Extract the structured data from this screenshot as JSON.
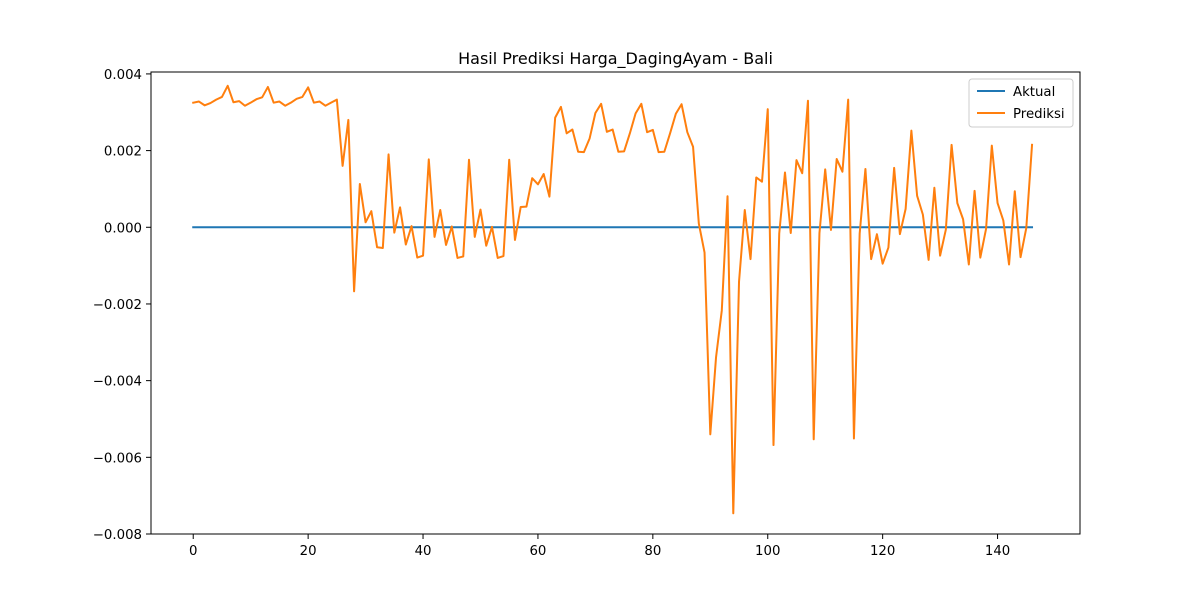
{
  "chart_data": {
    "type": "line",
    "title": "Hasil Prediksi Harga_DagingAyam - Bali",
    "xlabel": "",
    "ylabel": "",
    "xlim": [
      -7.35,
      154.35
    ],
    "ylim": [
      -0.008,
      0.00405
    ],
    "xticks": [
      0,
      20,
      40,
      60,
      80,
      100,
      120,
      140
    ],
    "xtick_labels": [
      "0",
      "20",
      "40",
      "60",
      "80",
      "100",
      "120",
      "140"
    ],
    "yticks": [
      -0.008,
      -0.006,
      -0.004,
      -0.002,
      0.0,
      0.002,
      0.004
    ],
    "ytick_labels": [
      "−0.008",
      "−0.006",
      "−0.004",
      "−0.002",
      "0.000",
      "0.002",
      "0.004"
    ],
    "legend_position": "upper right",
    "grid": false,
    "x": [
      0,
      1,
      2,
      3,
      4,
      5,
      6,
      7,
      8,
      9,
      10,
      11,
      12,
      13,
      14,
      15,
      16,
      17,
      18,
      19,
      20,
      21,
      22,
      23,
      24,
      25,
      26,
      27,
      28,
      29,
      30,
      31,
      32,
      33,
      34,
      35,
      36,
      37,
      38,
      39,
      40,
      41,
      42,
      43,
      44,
      45,
      46,
      47,
      48,
      49,
      50,
      51,
      52,
      53,
      54,
      55,
      56,
      57,
      58,
      59,
      60,
      61,
      62,
      63,
      64,
      65,
      66,
      67,
      68,
      69,
      70,
      71,
      72,
      73,
      74,
      75,
      76,
      77,
      78,
      79,
      80,
      81,
      82,
      83,
      84,
      85,
      86,
      87,
      88,
      89,
      90,
      91,
      92,
      93,
      94,
      95,
      96,
      97,
      98,
      99,
      100,
      101,
      102,
      103,
      104,
      105,
      106,
      107,
      108,
      109,
      110,
      111,
      112,
      113,
      114,
      115,
      116,
      117,
      118,
      119,
      120,
      121,
      122,
      123,
      124,
      125,
      126,
      127,
      128,
      129,
      130,
      131,
      132,
      133,
      134,
      135,
      136,
      137,
      138,
      139,
      140,
      141,
      142,
      143,
      144,
      145,
      146
    ],
    "series": [
      {
        "name": "Aktual",
        "color": "#1f77b4",
        "values": [
          0,
          0,
          0,
          0,
          0,
          0,
          0,
          0,
          0,
          0,
          0,
          0,
          0,
          0,
          0,
          0,
          0,
          0,
          0,
          0,
          0,
          0,
          0,
          0,
          0,
          0,
          0,
          0,
          0,
          0,
          0,
          0,
          0,
          0,
          0,
          0,
          0,
          0,
          0,
          0,
          0,
          0,
          0,
          0,
          0,
          0,
          0,
          0,
          0,
          0,
          0,
          0,
          0,
          0,
          0,
          0,
          0,
          0,
          0,
          0,
          0,
          0,
          0,
          0,
          0,
          0,
          0,
          0,
          0,
          0,
          0,
          0,
          0,
          0,
          0,
          0,
          0,
          0,
          0,
          0,
          0,
          0,
          0,
          0,
          0,
          0,
          0,
          0,
          0,
          0,
          0,
          0,
          0,
          0,
          0,
          0,
          0,
          0,
          0,
          0,
          0,
          0,
          0,
          0,
          0,
          0,
          0,
          0,
          0,
          0,
          0,
          0,
          0,
          0,
          0,
          0,
          0,
          0,
          0,
          0,
          0,
          0,
          0,
          0,
          0,
          0,
          0,
          0,
          0,
          0,
          0,
          0,
          0,
          0,
          0,
          0,
          0,
          0,
          0,
          0,
          0,
          0,
          0,
          0,
          0,
          0,
          0
        ]
      },
      {
        "name": "Prediksi",
        "color": "#ff7f0e",
        "values": [
          0.00325,
          0.00328,
          0.00318,
          0.00324,
          0.00333,
          0.0034,
          0.00369,
          0.00326,
          0.00329,
          0.00317,
          0.00325,
          0.00334,
          0.00339,
          0.00366,
          0.00325,
          0.00328,
          0.00317,
          0.00325,
          0.00335,
          0.0034,
          0.00365,
          0.00325,
          0.00328,
          0.00317,
          0.00325,
          0.00333,
          0.0016,
          0.0028,
          -0.00167,
          0.00113,
          0.00013,
          0.00042,
          -0.00052,
          -0.00054,
          0.0019,
          -0.00014,
          0.00052,
          -0.00045,
          3e-05,
          -0.00079,
          -0.00074,
          0.00177,
          -0.00025,
          0.00045,
          -0.00046,
          2e-05,
          -0.0008,
          -0.00076,
          0.00176,
          -0.00025,
          0.00046,
          -0.00048,
          1e-05,
          -0.0008,
          -0.00075,
          0.00176,
          -0.00033,
          0.00053,
          0.00054,
          0.00128,
          0.00112,
          0.00139,
          0.0008,
          0.00286,
          0.00314,
          0.00245,
          0.00255,
          0.00197,
          0.00196,
          0.00232,
          0.00298,
          0.00322,
          0.00249,
          0.00255,
          0.00197,
          0.00198,
          0.00245,
          0.00297,
          0.00322,
          0.00248,
          0.00254,
          0.00196,
          0.00197,
          0.00245,
          0.00296,
          0.00321,
          0.00248,
          0.0021,
          0.0001,
          -0.00066,
          -0.0054,
          -0.00339,
          -0.00217,
          0.00081,
          -0.00746,
          -0.00142,
          0.00045,
          -0.00083,
          0.0013,
          0.00119,
          0.00308,
          -0.00568,
          -0.00016,
          0.00143,
          -0.00015,
          0.00175,
          0.00141,
          0.0033,
          -0.00553,
          -0.00015,
          0.00151,
          -7e-05,
          0.00178,
          0.00145,
          0.00333,
          -0.00551,
          -0.00016,
          0.00152,
          -0.00083,
          -0.00018,
          -0.00095,
          -0.00053,
          0.00155,
          -0.00018,
          0.00048,
          0.00252,
          0.00082,
          0.00033,
          -0.00085,
          0.00103,
          -0.00074,
          -6e-05,
          0.00215,
          0.00063,
          0.00021,
          -0.00097,
          0.00095,
          -0.00079,
          -4e-05,
          0.00213,
          0.00063,
          0.00018,
          -0.00097,
          0.00094,
          -0.00078,
          -2e-05,
          0.00215
        ]
      }
    ]
  }
}
